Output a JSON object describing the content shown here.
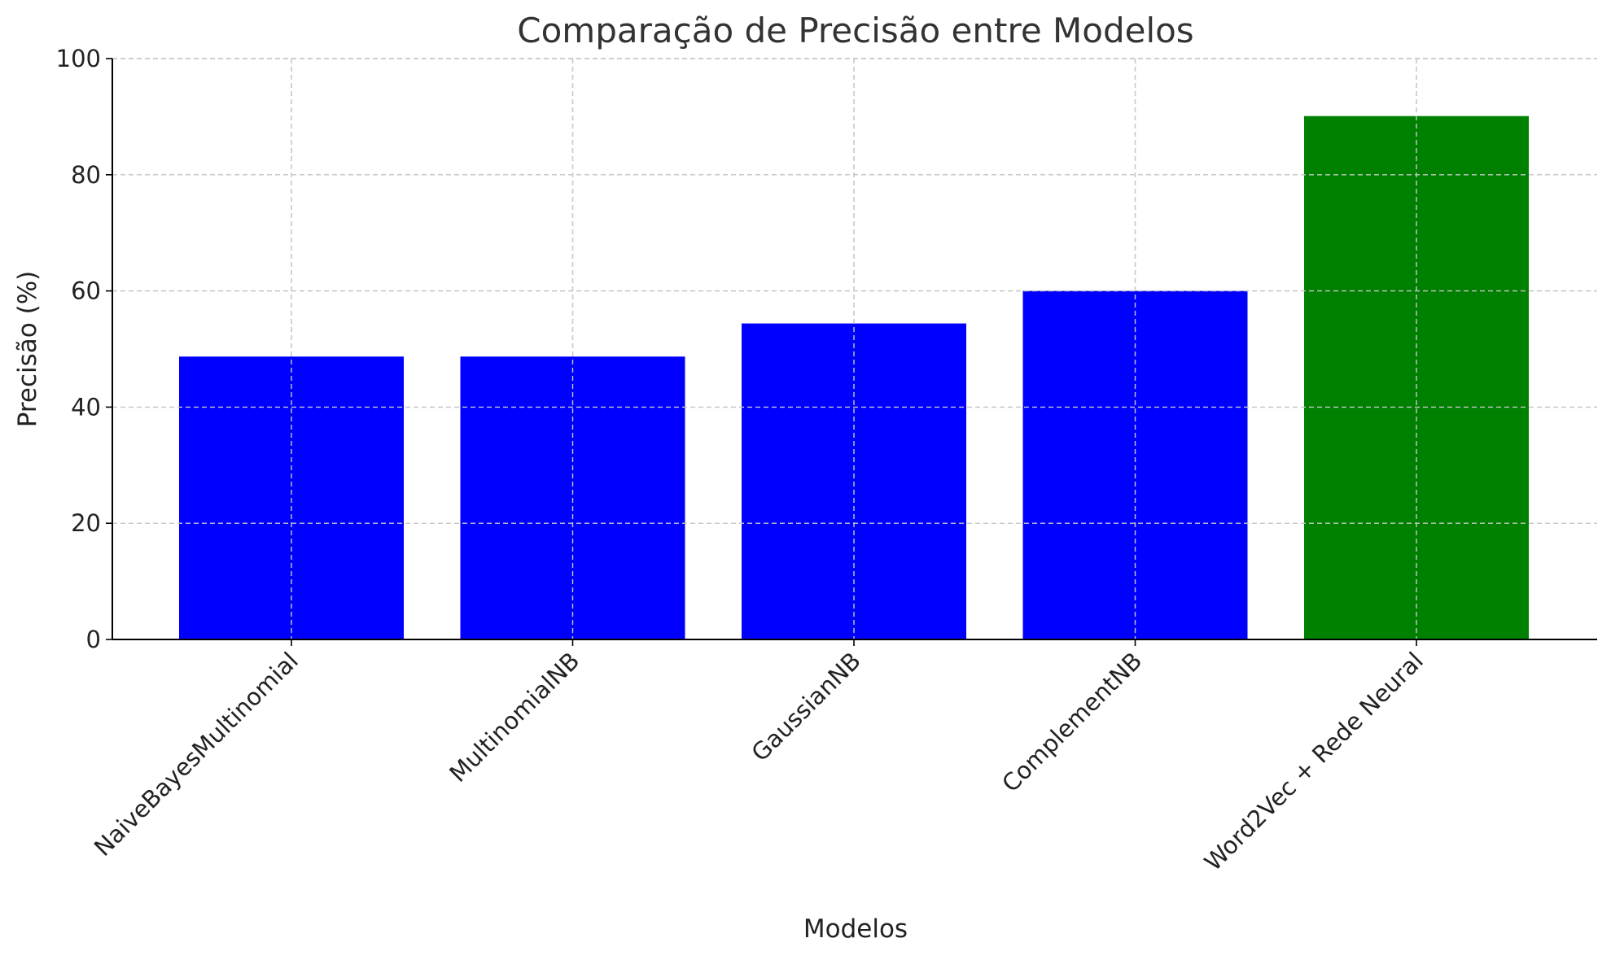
{
  "chart_data": {
    "type": "bar",
    "title": "Comparação de Precisão entre Modelos",
    "xlabel": "Modelos",
    "ylabel": "Precisão (%)",
    "categories": [
      "NaiveBayesMultinomial",
      "MultinomialNB",
      "GaussianNB",
      "ComplementNB",
      "Word2Vec + Rede Neural"
    ],
    "values": [
      48.7,
      48.7,
      54.4,
      60.0,
      90.1
    ],
    "bar_colors": [
      "#0000ff",
      "#0000ff",
      "#0000ff",
      "#0000ff",
      "#008000"
    ],
    "ylim": [
      0,
      100
    ],
    "yticks": [
      0,
      20,
      40,
      60,
      80,
      100
    ],
    "grid": true,
    "xtick_rotation": "45"
  }
}
